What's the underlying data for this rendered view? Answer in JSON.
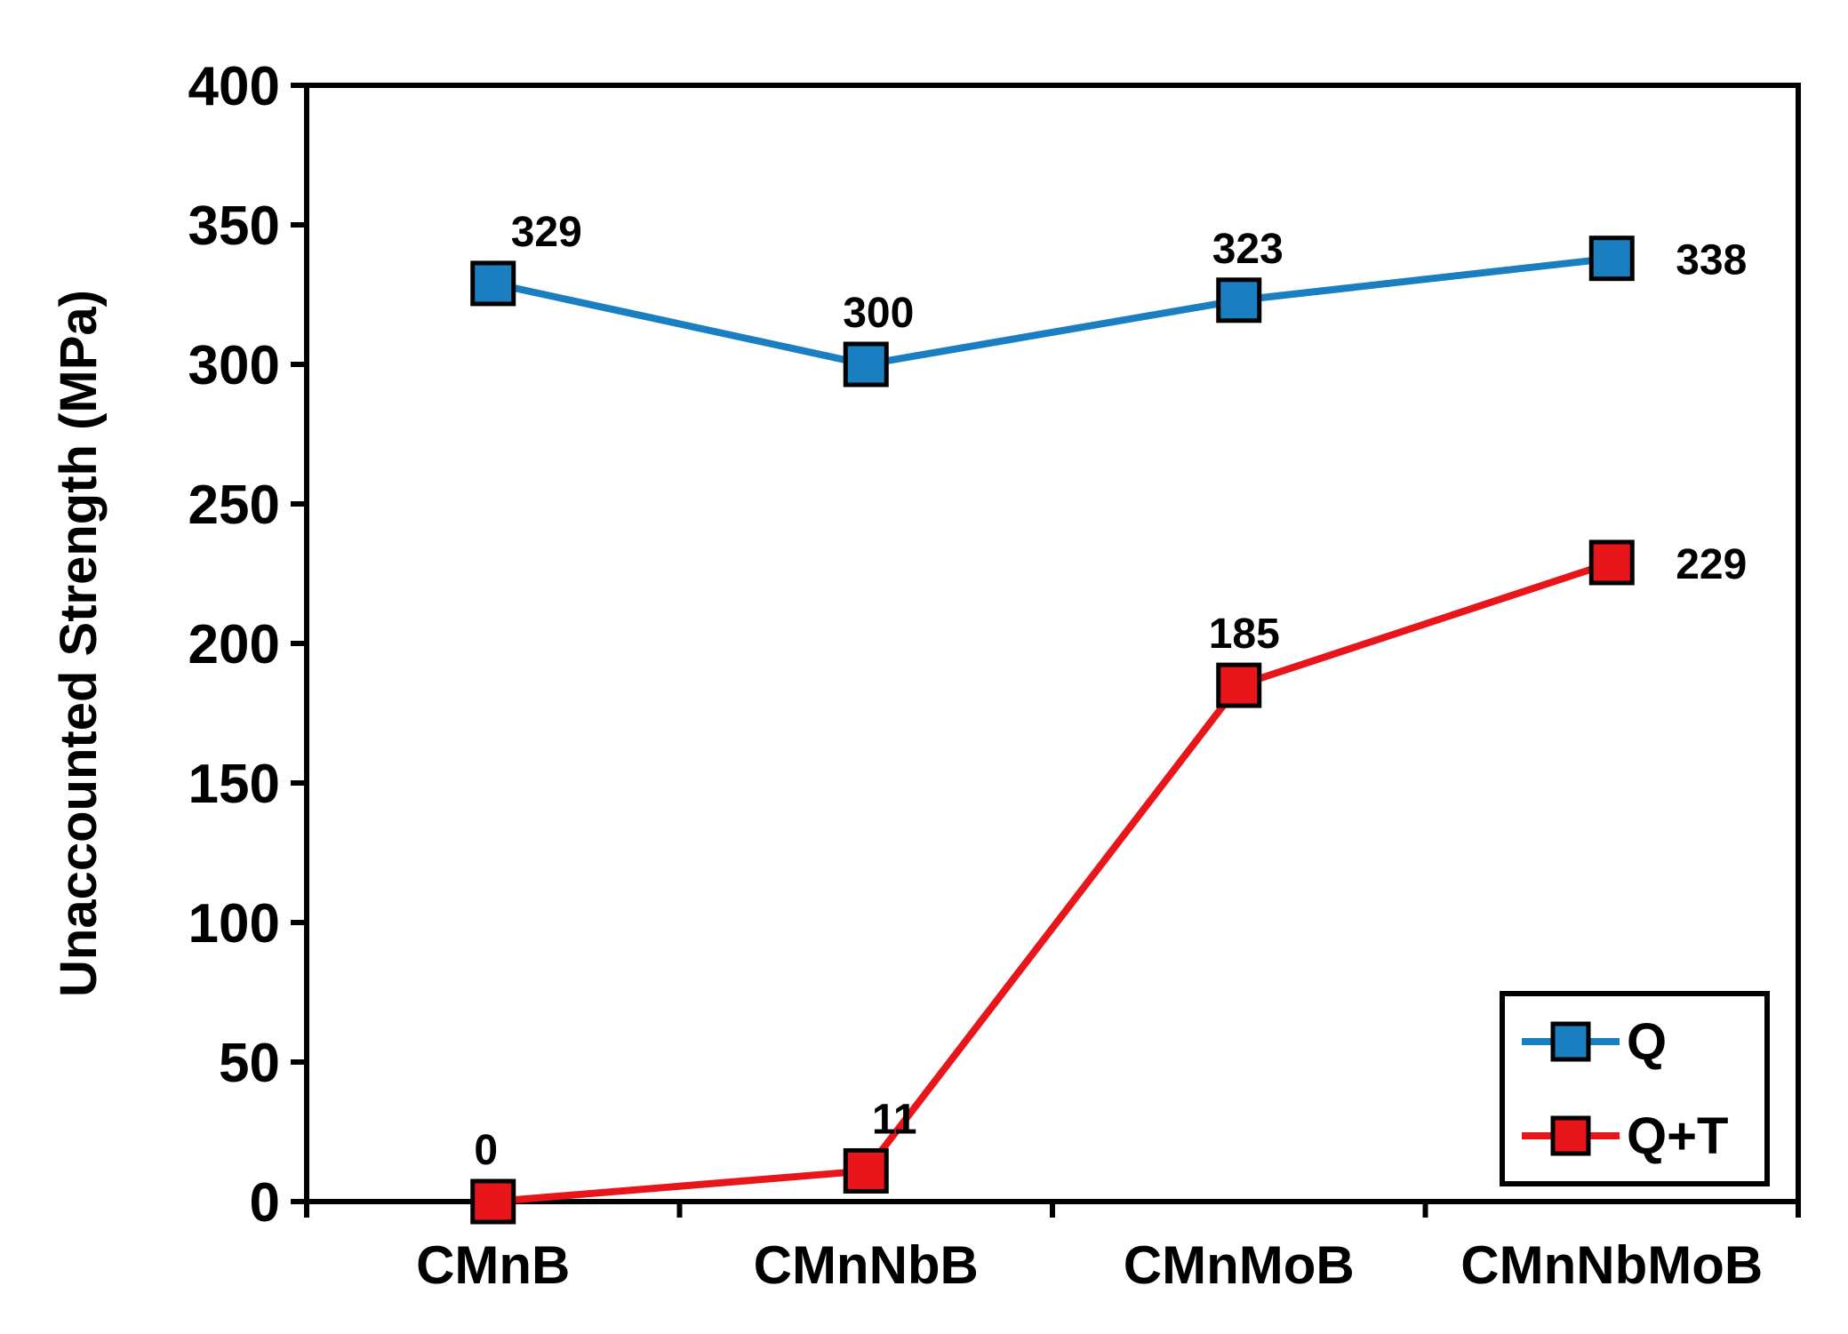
{
  "chart_data": {
    "type": "line",
    "categories": [
      "CMnB",
      "CMnNbB",
      "CMnMoB",
      "CMnNbMoB"
    ],
    "ylabel": "Unaccounted Strength (MPa)",
    "xlabel": "",
    "ylim": [
      0,
      400
    ],
    "yticks": [
      0,
      50,
      100,
      150,
      200,
      250,
      300,
      350,
      400
    ],
    "grid": false,
    "legend_position": "bottom-right",
    "marker": "square",
    "series": [
      {
        "name": "Q",
        "color": "#1a7fc0",
        "values": [
          329,
          300,
          323,
          338
        ],
        "labels": [
          "329",
          "300",
          "323",
          "338"
        ]
      },
      {
        "name": "Q+T",
        "color": "#e8151b",
        "values": [
          0,
          11,
          185,
          229
        ],
        "labels": [
          "0",
          "11",
          "185",
          "229"
        ]
      }
    ]
  }
}
